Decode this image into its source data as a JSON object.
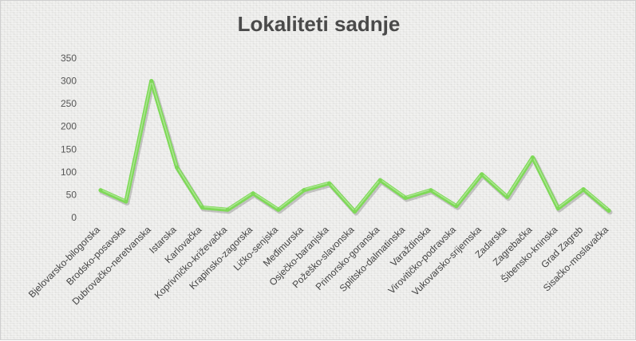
{
  "chart_data": {
    "type": "line",
    "title": "Lokaliteti sadnje",
    "xlabel": "",
    "ylabel": "",
    "ylim": [
      0,
      350
    ],
    "yticks": [
      0,
      50,
      100,
      150,
      200,
      250,
      300,
      350
    ],
    "grid": false,
    "legend": "none",
    "categories": [
      "Bjelovarsko-bilogorska",
      "Brodsko-posavska",
      "Dubrovačko-neretvanska",
      "Istarska",
      "Karlovačka",
      "Koprivničko-križevačka",
      "Krapinsko-zagorska",
      "Ličko-senjska",
      "Međimurska",
      "Osječko-baranjska",
      "Požeško-slavonska",
      "Primorsko-goranska",
      "Splitsko-dalmatinska",
      "Varaždinska",
      "Virovitičko-podravska",
      "Vukovarsko-srijemska",
      "Zadarska",
      "Zagrebačka",
      "Šibensko-kninska",
      "Grad Zagreb",
      "Sisačko-moslavačka"
    ],
    "series": [
      {
        "values": [
          60,
          35,
          300,
          110,
          22,
          17,
          53,
          17,
          60,
          75,
          13,
          82,
          43,
          60,
          25,
          95,
          45,
          132,
          20,
          62,
          15
        ],
        "color": "#7ed957"
      }
    ]
  }
}
